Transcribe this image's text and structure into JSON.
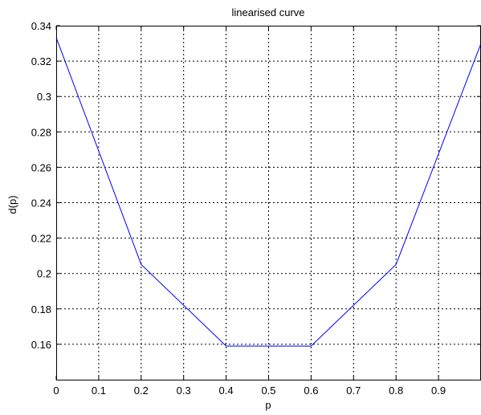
{
  "chart_data": {
    "type": "line",
    "title": "linearised curve",
    "xlabel": "p",
    "ylabel": "d(p)",
    "xlim": [
      0,
      1
    ],
    "ylim": [
      0.14,
      0.34
    ],
    "xticks": [
      0,
      0.1,
      0.2,
      0.3,
      0.4,
      0.5,
      0.6,
      0.7,
      0.8,
      0.9
    ],
    "xtick_labels": [
      "0",
      "0.1",
      "0.2",
      "0.3",
      "0.4",
      "0.5",
      "0.6",
      "0.7",
      "0.8",
      "0.9"
    ],
    "yticks": [
      0.16,
      0.18,
      0.2,
      0.22,
      0.24,
      0.26,
      0.28,
      0.3,
      0.32,
      0.34
    ],
    "ytick_labels": [
      "0.16",
      "0.18",
      "0.2",
      "0.22",
      "0.24",
      "0.26",
      "0.28",
      "0.3",
      "0.32",
      "0.34"
    ],
    "grid": true,
    "series": [
      {
        "color": "#0000ff",
        "x": [
          0,
          0.2,
          0.4,
          0.6,
          0.8,
          1.0
        ],
        "y": [
          0.3333,
          0.2051,
          0.159,
          0.159,
          0.2051,
          0.33
        ]
      }
    ]
  }
}
